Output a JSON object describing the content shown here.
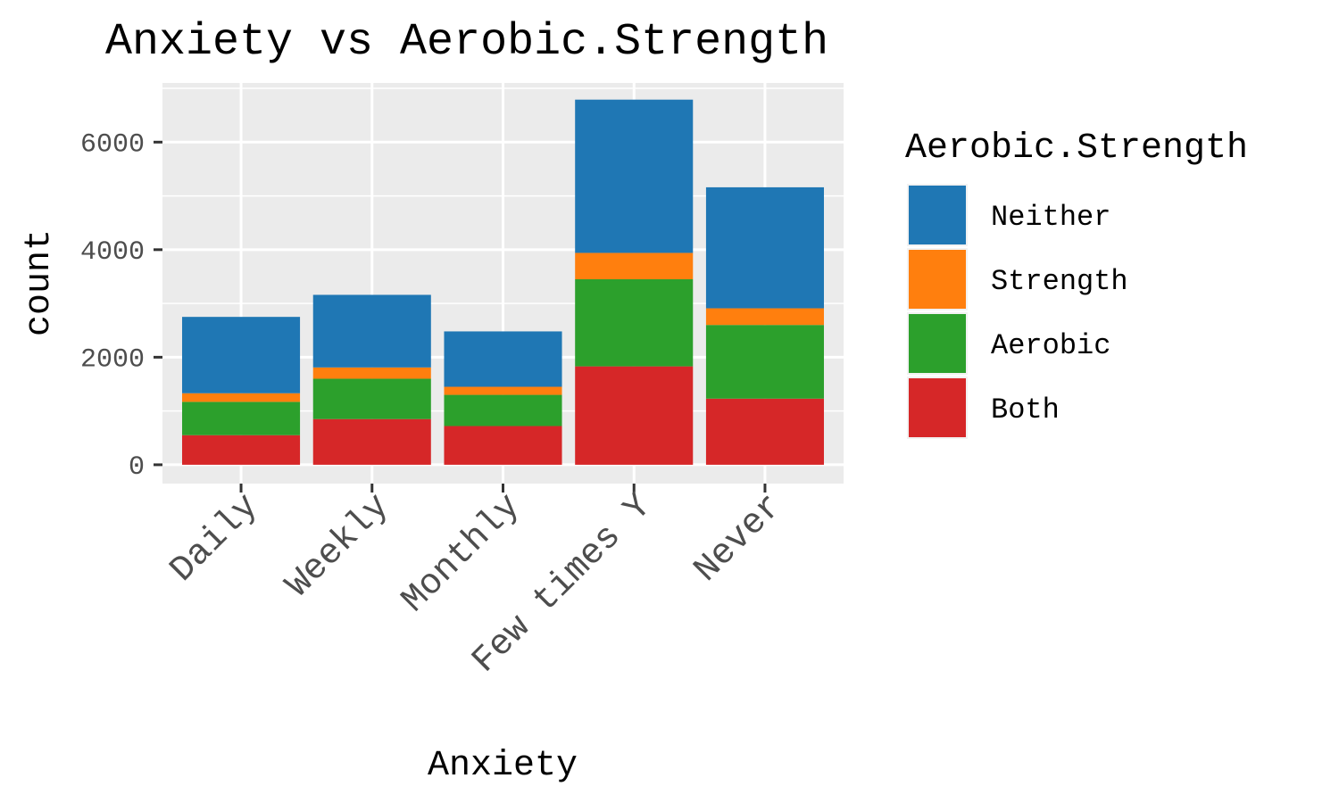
{
  "chart_data": {
    "type": "bar",
    "stacked": true,
    "title": "Anxiety vs Aerobic.Strength",
    "xlabel": "Anxiety",
    "ylabel": "count",
    "categories": [
      "Daily",
      "Weekly",
      "Monthly",
      "Few times Y",
      "Never"
    ],
    "ylim": [
      -350,
      7100
    ],
    "yticks": [
      0,
      2000,
      4000,
      6000
    ],
    "legend_title": "Aerobic.Strength",
    "legend_position": "right",
    "grid": true,
    "series": [
      {
        "name": "Both",
        "color": "#d62728",
        "values": [
          550,
          850,
          720,
          1830,
          1230
        ]
      },
      {
        "name": "Aerobic",
        "color": "#2ca02c",
        "values": [
          620,
          750,
          580,
          1620,
          1370
        ]
      },
      {
        "name": "Strength",
        "color": "#ff7f0e",
        "values": [
          160,
          210,
          150,
          490,
          310
        ]
      },
      {
        "name": "Neither",
        "color": "#1f77b4",
        "values": [
          1420,
          1350,
          1030,
          2850,
          2250
        ]
      }
    ],
    "legend_order": [
      "Neither",
      "Strength",
      "Aerobic",
      "Both"
    ]
  }
}
